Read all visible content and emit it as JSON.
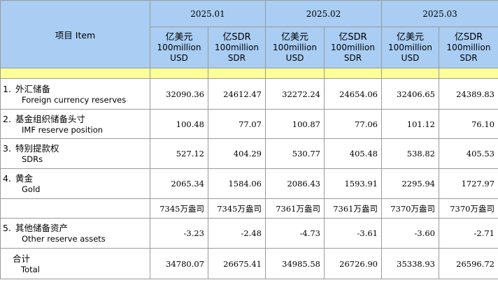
{
  "header": {
    "item": "项目 Item",
    "periods": [
      "2025.01",
      "2025.02",
      "2025.03"
    ],
    "units": {
      "usd": [
        "亿美元",
        "100million",
        "USD"
      ],
      "sdr": [
        "亿SDR",
        "100million",
        "SDR"
      ]
    }
  },
  "rows": [
    {
      "num": "1.",
      "zh": "外汇储备",
      "en": "Foreign currency reserves",
      "values": [
        "32090.36",
        "24612.47",
        "32272.24",
        "24654.06",
        "32406.65",
        "24389.83"
      ]
    },
    {
      "num": "2.",
      "zh": "基金组织储备头寸",
      "en": "IMF reserve position",
      "values": [
        "100.48",
        "77.07",
        "100.87",
        "77.06",
        "101.12",
        "76.10"
      ]
    },
    {
      "num": "3.",
      "zh": "特别提款权",
      "en": "SDRs",
      "values": [
        "527.12",
        "404.29",
        "530.77",
        "405.48",
        "538.82",
        "405.53"
      ]
    },
    {
      "num": "4.",
      "zh": "黄金",
      "en": "Gold",
      "values": [
        "2065.34",
        "1584.06",
        "2086.43",
        "1593.91",
        "2295.94",
        "1727.97"
      ]
    },
    {
      "gold_weight": [
        "7345万盎司",
        "7345万盎司",
        "7361万盎司",
        "7361万盎司",
        "7370万盎司",
        "7370万盎司"
      ]
    },
    {
      "num": "5.",
      "zh": "其他储备资产",
      "en": "Other reserve assets",
      "values": [
        "-3.23",
        "-2.48",
        "-4.73",
        "-3.61",
        "-3.60",
        "-2.71"
      ]
    },
    {
      "zh": "合计",
      "en": "Total",
      "values": [
        "34780.07",
        "26675.41",
        "34985.58",
        "26726.90",
        "35338.93",
        "26596.72"
      ]
    }
  ]
}
